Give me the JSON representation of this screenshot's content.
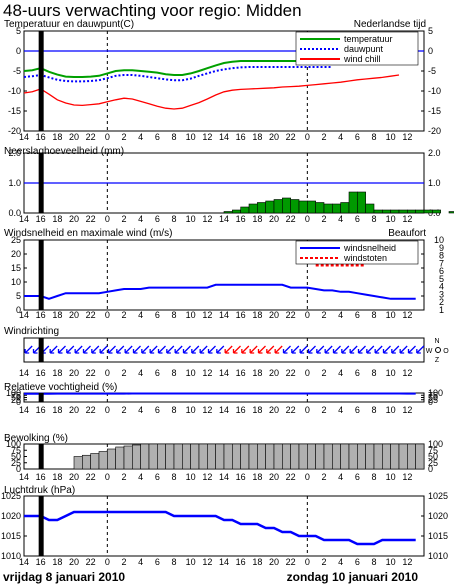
{
  "title": "48-uurs verwachting voor regio: Midden",
  "days": {
    "left": "vrijdag 8 januari 2010",
    "right": "zondag 10 januari 2010"
  },
  "x_ticks": [
    "14",
    "16",
    "18",
    "20",
    "22",
    "0",
    "2",
    "4",
    "6",
    "8",
    "10",
    "12",
    "14",
    "16",
    "18",
    "20",
    "22",
    "0",
    "2",
    "4",
    "6",
    "8",
    "10",
    "12"
  ],
  "midnight_hours": [
    10,
    34
  ],
  "now_hour": 2,
  "colors": {
    "blue": "#0000ff",
    "green": "#00a000",
    "red": "#ff0000",
    "darkred": "#dd0000",
    "precip": "#009900",
    "cloud": "#b0b0b0"
  },
  "chart_data": [
    {
      "id": "temp",
      "type": "line",
      "title": "Temperatuur en dauwpunt(C)",
      "right_title": "Nederlandse tijd",
      "ylim": [
        -20,
        5
      ],
      "yticks": [
        "5",
        "0",
        "-5",
        "-10",
        "-15",
        "-20"
      ],
      "ref_line": 0,
      "legend": [
        "temperatuur",
        "dauwpunt",
        "wind chill"
      ],
      "series": [
        {
          "name": "temperatuur",
          "color": "#00a000",
          "values": [
            -5.0,
            -4.8,
            -4.3,
            -5.2,
            -5.9,
            -6.4,
            -6.5,
            -6.5,
            -6.4,
            -6.2,
            -5.6,
            -5.0,
            -4.8,
            -4.8,
            -5.0,
            -5.2,
            -5.4,
            -5.8,
            -6.0,
            -6.0,
            -5.6,
            -5.0,
            -4.3,
            -3.6,
            -3.0,
            -2.7,
            -2.5,
            -2.5,
            -2.5,
            -2.5,
            -2.5,
            -2.5,
            -2.5,
            -2.5,
            -2.5,
            -2.5,
            -2.5,
            -2.5
          ]
        },
        {
          "name": "dauwpunt",
          "color": "#0000ff",
          "values": [
            -6.5,
            -6.3,
            -6.0,
            -6.6,
            -7.2,
            -7.5,
            -7.6,
            -7.6,
            -7.5,
            -7.3,
            -6.8,
            -6.2,
            -6.0,
            -6.0,
            -6.2,
            -6.5,
            -6.8,
            -7.1,
            -7.3,
            -7.3,
            -6.9,
            -6.2,
            -5.6,
            -5.0,
            -4.6,
            -4.3,
            -4.1,
            -4.0,
            -4.0,
            -4.0,
            -4.0,
            -4.0,
            -4.0,
            -4.0,
            -4.0,
            -4.0,
            -4.0,
            -4.0
          ]
        },
        {
          "name": "wind chill",
          "color": "#ff0000",
          "values": [
            -10.5,
            -10.2,
            -9.5,
            -10.8,
            -12.2,
            -13.0,
            -13.5,
            -13.6,
            -13.4,
            -13.2,
            -12.7,
            -12.2,
            -11.8,
            -12.0,
            -12.6,
            -13.2,
            -13.8,
            -14.3,
            -14.5,
            -14.3,
            -13.6,
            -12.9,
            -12.0,
            -11.0,
            -10.2,
            -9.8,
            -9.6,
            -9.5,
            -9.4,
            -9.3,
            -9.2,
            -9.0,
            -8.9,
            -8.8,
            -8.6,
            -8.4,
            -8.2,
            -8.0,
            -7.8,
            -7.5,
            -7.2,
            -7.0,
            -6.8,
            -6.6,
            -6.3,
            -6.0
          ]
        }
      ]
    },
    {
      "id": "precip",
      "type": "bar",
      "title": "Neerslaghoeveelheid (mm)",
      "ylim": [
        0,
        2
      ],
      "yticks": [
        "2.0",
        "1.0",
        "0.0"
      ],
      "ref_line": 1,
      "bar_start_hour": 24,
      "values": [
        0.05,
        0.1,
        0.2,
        0.3,
        0.35,
        0.4,
        0.45,
        0.5,
        0.45,
        0.4,
        0.4,
        0.35,
        0.3,
        0.3,
        0.35,
        0.7,
        0.7,
        0.3,
        0.1,
        0.1,
        0.1,
        0.1,
        0.1,
        0.1,
        0.1,
        0.1,
        0.0,
        0.05
      ]
    },
    {
      "id": "wind",
      "type": "line",
      "title": "Windsnelheid en maximale wind (m/s)",
      "right_title": "Beaufort",
      "ylim": [
        0,
        25
      ],
      "yticks": [
        "25",
        "20",
        "15",
        "10",
        "5",
        "0"
      ],
      "right_ticks": [
        "10",
        "9",
        "8",
        "7",
        "6",
        "5",
        "4",
        "3",
        "2",
        "1"
      ],
      "legend": [
        "windsnelheid",
        "windstoten"
      ],
      "series": [
        {
          "name": "windsnelheid",
          "color": "#0000ff",
          "values": [
            5,
            5,
            5,
            4,
            5,
            6,
            6,
            6,
            6,
            6,
            6.5,
            7,
            7.5,
            7.5,
            7.5,
            8,
            8,
            8,
            8,
            8,
            8,
            8,
            8,
            9,
            9,
            9,
            9,
            9,
            9,
            9,
            9,
            9,
            8,
            8,
            8,
            7.5,
            7,
            7,
            6.5,
            6.5,
            6,
            5.5,
            5,
            4.5,
            4,
            4,
            4,
            4
          ]
        },
        {
          "name": "windstoten",
          "color": "#ff0000",
          "start_hour": 35,
          "values": [
            16,
            16,
            16,
            16,
            16,
            16,
            16
          ]
        }
      ]
    },
    {
      "id": "winddir",
      "type": "arrows",
      "title": "Windrichting",
      "compass": [
        "N",
        "W",
        "O",
        "Z"
      ],
      "values": [
        "ZW",
        "ZW",
        "ZW",
        "ZW",
        "ZW",
        "ZW",
        "ZW",
        "ZW",
        "ZW",
        "ZW",
        "ZW",
        "ZW",
        "ZW",
        "ZW",
        "ZW",
        "ZW",
        "ZW",
        "ZW",
        "ZW",
        "ZW",
        "ZW",
        "ZW",
        "ZW",
        "ZW",
        "ZW",
        "ZW",
        "ZW",
        "ZW",
        "ZW",
        "ZW",
        "ZW",
        "ZW",
        "ZW",
        "ZW",
        "ZW",
        "ZW",
        "ZW",
        "ZW",
        "ZW",
        "ZW",
        "ZW",
        "ZW",
        "ZW",
        "ZW",
        "ZW",
        "ZW",
        "ZW",
        "ZW"
      ],
      "red_from": 24,
      "red_to": 30
    },
    {
      "id": "humidity",
      "type": "line",
      "title": "Relatieve vochtigheid (%)",
      "ylim": [
        0,
        100
      ],
      "yticks": [
        "100",
        "75",
        "50",
        "25",
        "0"
      ],
      "series": [
        {
          "name": "vochtigheid",
          "color": "#0000ff",
          "values": [
            92,
            92,
            92,
            92,
            93,
            93,
            93,
            93,
            93,
            93,
            93,
            93,
            93,
            94,
            94,
            94,
            94,
            94,
            94,
            94,
            94,
            94,
            94,
            94,
            94,
            94,
            94,
            94,
            94,
            94,
            94,
            94,
            94,
            94,
            94,
            94,
            94,
            94,
            94,
            94,
            94,
            94,
            94,
            94,
            94,
            94,
            93,
            93
          ]
        }
      ]
    },
    {
      "id": "cloud",
      "type": "bar",
      "title": "Bewolking (%)",
      "ylim": [
        0,
        100
      ],
      "yticks": [
        "100",
        "75",
        "50",
        "25",
        "0"
      ],
      "bar_start_hour": 6,
      "values": [
        50,
        55,
        62,
        70,
        80,
        88,
        92,
        96,
        100,
        100,
        100,
        100,
        100,
        100,
        100,
        100,
        100,
        100,
        100,
        100,
        100,
        100,
        100,
        100,
        100,
        100,
        100,
        100,
        100,
        100,
        100,
        100,
        100,
        100,
        100,
        100,
        100,
        100,
        100,
        100,
        100,
        100
      ]
    },
    {
      "id": "pressure",
      "type": "line",
      "title": "Luchtdruk (hPa)",
      "ylim": [
        1010,
        1025
      ],
      "yticks": [
        "1025",
        "1020",
        "1015",
        "1010"
      ],
      "series": [
        {
          "name": "luchtdruk",
          "color": "#0000ff",
          "values": [
            1020,
            1020,
            1020,
            1019,
            1019,
            1020,
            1021,
            1021,
            1021,
            1021,
            1021,
            1021,
            1021,
            1021,
            1021,
            1021,
            1021,
            1021,
            1020,
            1020,
            1020,
            1020,
            1020,
            1020,
            1019,
            1019,
            1018,
            1018,
            1018,
            1017,
            1017,
            1016,
            1016,
            1015,
            1015,
            1015,
            1014,
            1014,
            1014,
            1014,
            1013,
            1013,
            1013,
            1014,
            1014,
            1014,
            1014,
            1014
          ]
        }
      ]
    }
  ]
}
